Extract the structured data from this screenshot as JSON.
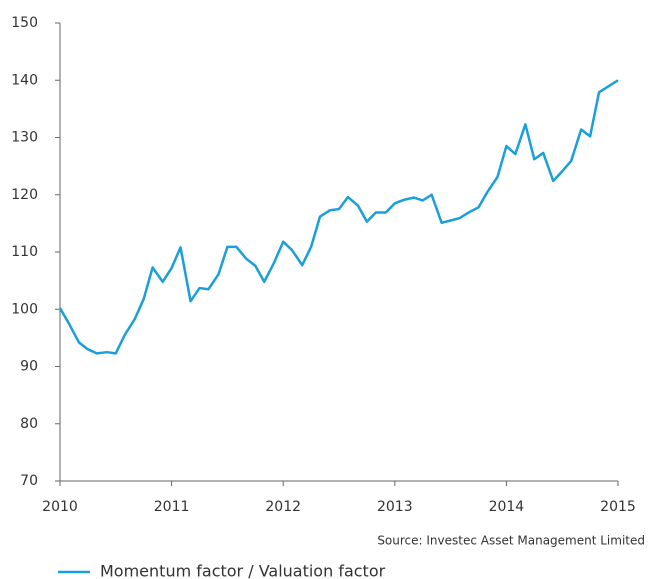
{
  "chart_data": {
    "type": "line",
    "x": [
      2010,
      2010.08,
      2010.17,
      2010.25,
      2010.33,
      2010.42,
      2010.5,
      2010.58,
      2010.67,
      2010.75,
      2010.83,
      2010.92,
      2011,
      2011.08,
      2011.17,
      2011.25,
      2011.33,
      2011.42,
      2011.5,
      2011.58,
      2011.67,
      2011.75,
      2011.83,
      2011.92,
      2012,
      2012.08,
      2012.17,
      2012.25,
      2012.33,
      2012.42,
      2012.5,
      2012.58,
      2012.67,
      2012.75,
      2012.83,
      2012.92,
      2013,
      2013.08,
      2013.17,
      2013.25,
      2013.33,
      2013.42,
      2013.5,
      2013.58,
      2013.67,
      2013.75,
      2013.83,
      2013.92,
      2014,
      2014.08,
      2014.17,
      2014.25,
      2014.33,
      2014.42,
      2014.5,
      2014.58,
      2014.67,
      2014.75,
      2014.83,
      2014.92,
      2015
    ],
    "series": [
      {
        "name": "Momentum factor / Valuation factor",
        "color": "#1a9fd8",
        "values": [
          100.2,
          97.5,
          94.2,
          93,
          92.3,
          92.5,
          92.3,
          95.5,
          98.3,
          101.8,
          107.3,
          104.8,
          107.2,
          110.8,
          101.4,
          103.7,
          103.5,
          106.1,
          110.9,
          110.9,
          108.8,
          107.6,
          104.8,
          108.2,
          111.8,
          110.3,
          107.7,
          110.9,
          116.2,
          117.3,
          117.5,
          119.6,
          118.1,
          115.3,
          116.9,
          116.9,
          118.5,
          119.1,
          119.5,
          119,
          120,
          115.1,
          115.5,
          115.9,
          117,
          117.8,
          120.5,
          123.1,
          128.5,
          127.1,
          132.3,
          126.2,
          127.3,
          122.4,
          124.1,
          125.9,
          131.4,
          130.2,
          137.9,
          139,
          140
        ]
      }
    ],
    "xlim": [
      2010,
      2015
    ],
    "xticks": [
      2010,
      2011,
      2012,
      2013,
      2014,
      2015
    ],
    "ylim": [
      70,
      150
    ],
    "yticks": [
      70,
      80,
      90,
      100,
      110,
      120,
      130,
      140,
      150
    ],
    "source": "Source: Investec Asset Management Limited",
    "legend": "bottom-left"
  }
}
